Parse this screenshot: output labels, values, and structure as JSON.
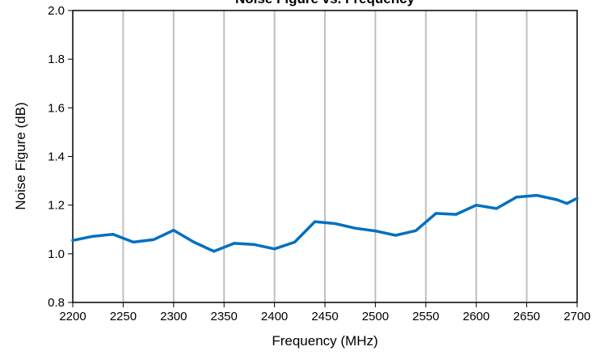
{
  "chart_data": {
    "type": "line",
    "title": "Noise Figure vs. Frequency",
    "xlabel": "Frequency (MHz)",
    "ylabel": "Noise Figure (dB)",
    "xlim": [
      2200,
      2700
    ],
    "ylim": [
      0.8,
      2.0
    ],
    "xticks": [
      "2200",
      "2250",
      "2300",
      "2350",
      "2400",
      "2450",
      "2500",
      "2550",
      "2600",
      "2650",
      "2700"
    ],
    "yticks": [
      "0.8",
      "1.0",
      "1.2",
      "1.4",
      "1.6",
      "1.8",
      "2.0"
    ],
    "grid": "vertical",
    "series": [
      {
        "color": "#0070c0",
        "x": [
          2200,
          2220,
          2240,
          2260,
          2280,
          2300,
          2320,
          2340,
          2360,
          2380,
          2400,
          2420,
          2440,
          2460,
          2480,
          2500,
          2520,
          2540,
          2560,
          2580,
          2600,
          2620,
          2640,
          2660,
          2680,
          2690,
          2700
        ],
        "y": [
          1.055,
          1.072,
          1.08,
          1.048,
          1.058,
          1.097,
          1.048,
          1.01,
          1.043,
          1.038,
          1.02,
          1.048,
          1.132,
          1.124,
          1.105,
          1.094,
          1.076,
          1.095,
          1.166,
          1.162,
          1.2,
          1.186,
          1.233,
          1.24,
          1.222,
          1.207,
          1.228
        ]
      }
    ]
  }
}
